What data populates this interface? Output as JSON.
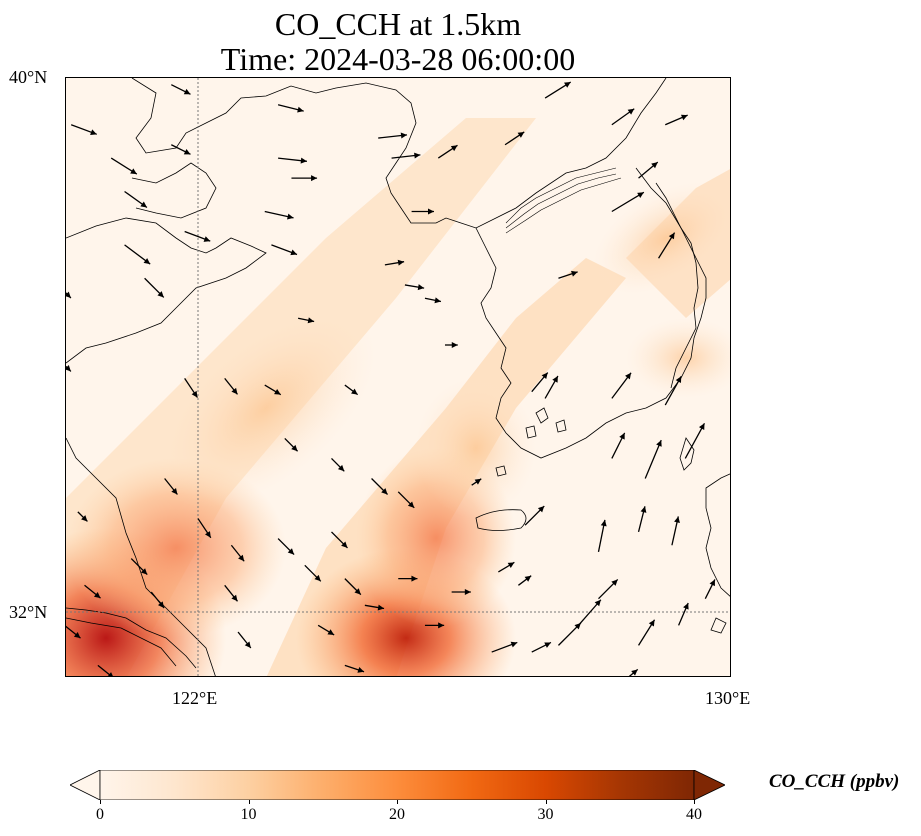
{
  "title": {
    "line1": "CO_CCH at 1.5km",
    "line2": "Time: 2024-03-28 06:00:00"
  },
  "map": {
    "lon_range": [
      120,
      130
    ],
    "lat_range": [
      31,
      40
    ],
    "gridlines": {
      "lon": [
        122
      ],
      "lat": [
        32
      ],
      "style": "dotted",
      "color": "#777777"
    },
    "lat_ticks": [
      "40°N",
      "32°N"
    ],
    "lon_ticks": [
      "122°E",
      "130°E"
    ],
    "field": {
      "variable": "CO_CCH",
      "plumes": [
        {
          "lon": 120.2,
          "lat": 31.2,
          "value": 38
        },
        {
          "lon": 121.0,
          "lat": 32.0,
          "value": 25
        },
        {
          "lon": 121.6,
          "lat": 32.9,
          "value": 18
        },
        {
          "lon": 122.6,
          "lat": 34.2,
          "value": 10
        },
        {
          "lon": 123.5,
          "lat": 35.3,
          "value": 7
        },
        {
          "lon": 125.0,
          "lat": 31.3,
          "value": 30
        },
        {
          "lon": 124.8,
          "lat": 32.2,
          "value": 22
        },
        {
          "lon": 125.2,
          "lat": 33.2,
          "value": 15
        },
        {
          "lon": 125.5,
          "lat": 34.1,
          "value": 9
        },
        {
          "lon": 129.3,
          "lat": 37.0,
          "value": 8
        },
        {
          "lon": 128.4,
          "lat": 37.8,
          "value": 6
        }
      ]
    },
    "wind_vectors": [
      {
        "lon": 120.1,
        "lat": 39.3,
        "u": 8,
        "v": -3
      },
      {
        "lon": 120.7,
        "lat": 38.8,
        "u": 8,
        "v": -5
      },
      {
        "lon": 120.9,
        "lat": 38.3,
        "u": 7,
        "v": -5
      },
      {
        "lon": 120.9,
        "lat": 37.5,
        "u": 8,
        "v": -6
      },
      {
        "lon": 121.2,
        "lat": 37.0,
        "u": 6,
        "v": -6
      },
      {
        "lon": 121.6,
        "lat": 39.9,
        "u": 6,
        "v": -3
      },
      {
        "lon": 121.6,
        "lat": 39.0,
        "u": 6,
        "v": -3
      },
      {
        "lon": 121.8,
        "lat": 37.7,
        "u": 8,
        "v": -3
      },
      {
        "lon": 123.2,
        "lat": 39.6,
        "u": 8,
        "v": -2
      },
      {
        "lon": 123.2,
        "lat": 38.8,
        "u": 9,
        "v": -1
      },
      {
        "lon": 123.4,
        "lat": 38.5,
        "u": 8,
        "v": 0
      },
      {
        "lon": 123.0,
        "lat": 38.0,
        "u": 9,
        "v": -2
      },
      {
        "lon": 123.1,
        "lat": 37.5,
        "u": 8,
        "v": -3
      },
      {
        "lon": 124.7,
        "lat": 39.1,
        "u": 9,
        "v": 1
      },
      {
        "lon": 124.9,
        "lat": 38.8,
        "u": 9,
        "v": 1
      },
      {
        "lon": 125.6,
        "lat": 38.8,
        "u": 6,
        "v": 4
      },
      {
        "lon": 124.8,
        "lat": 37.2,
        "u": 6,
        "v": 1
      },
      {
        "lon": 125.1,
        "lat": 36.9,
        "u": 6,
        "v": -1
      },
      {
        "lon": 125.4,
        "lat": 36.7,
        "u": 5,
        "v": -1
      },
      {
        "lon": 125.7,
        "lat": 36.0,
        "u": 4,
        "v": 0
      },
      {
        "lon": 126.6,
        "lat": 39.0,
        "u": 6,
        "v": 4
      },
      {
        "lon": 127.2,
        "lat": 39.7,
        "u": 8,
        "v": 5
      },
      {
        "lon": 128.2,
        "lat": 39.3,
        "u": 7,
        "v": 5
      },
      {
        "lon": 129.0,
        "lat": 39.3,
        "u": 7,
        "v": 3
      },
      {
        "lon": 128.2,
        "lat": 38.0,
        "u": 10,
        "v": 6
      },
      {
        "lon": 128.6,
        "lat": 38.5,
        "u": 6,
        "v": 5
      },
      {
        "lon": 128.9,
        "lat": 37.3,
        "u": 5,
        "v": 8
      },
      {
        "lon": 127.4,
        "lat": 37.0,
        "u": 6,
        "v": 2
      },
      {
        "lon": 127.0,
        "lat": 35.3,
        "u": 5,
        "v": 6
      },
      {
        "lon": 127.2,
        "lat": 35.2,
        "u": 4,
        "v": 7
      },
      {
        "lon": 128.2,
        "lat": 35.2,
        "u": 6,
        "v": 8
      },
      {
        "lon": 129.0,
        "lat": 35.1,
        "u": 5,
        "v": 9
      },
      {
        "lon": 129.3,
        "lat": 34.3,
        "u": 6,
        "v": 11
      },
      {
        "lon": 128.7,
        "lat": 34.0,
        "u": 5,
        "v": 12
      },
      {
        "lon": 128.2,
        "lat": 34.3,
        "u": 4,
        "v": 8
      },
      {
        "lon": 126.9,
        "lat": 33.3,
        "u": 6,
        "v": 6
      },
      {
        "lon": 126.5,
        "lat": 32.6,
        "u": 5,
        "v": 3
      },
      {
        "lon": 126.1,
        "lat": 33.9,
        "u": 3,
        "v": 2
      },
      {
        "lon": 126.8,
        "lat": 32.4,
        "u": 4,
        "v": 3
      },
      {
        "lon": 127.4,
        "lat": 31.5,
        "u": 7,
        "v": 7
      },
      {
        "lon": 127.7,
        "lat": 31.8,
        "u": 7,
        "v": 8
      },
      {
        "lon": 128.0,
        "lat": 32.2,
        "u": 6,
        "v": 6
      },
      {
        "lon": 128.6,
        "lat": 31.5,
        "u": 5,
        "v": 8
      },
      {
        "lon": 129.2,
        "lat": 31.8,
        "u": 3,
        "v": 7
      },
      {
        "lon": 129.6,
        "lat": 32.2,
        "u": 3,
        "v": 6
      },
      {
        "lon": 128.0,
        "lat": 32.9,
        "u": 2,
        "v": 10
      },
      {
        "lon": 128.6,
        "lat": 33.2,
        "u": 2,
        "v": 8
      },
      {
        "lon": 129.1,
        "lat": 33.0,
        "u": 2,
        "v": 9
      },
      {
        "lon": 126.4,
        "lat": 31.4,
        "u": 8,
        "v": 3
      },
      {
        "lon": 127.0,
        "lat": 31.4,
        "u": 6,
        "v": 3
      },
      {
        "lon": 128.3,
        "lat": 30.9,
        "u": 6,
        "v": 5
      },
      {
        "lon": 120.0,
        "lat": 31.8,
        "u": 5,
        "v": -4
      },
      {
        "lon": 120.3,
        "lat": 32.4,
        "u": 5,
        "v": -4
      },
      {
        "lon": 120.5,
        "lat": 31.2,
        "u": 5,
        "v": -4
      },
      {
        "lon": 121.0,
        "lat": 32.8,
        "u": 5,
        "v": -5
      },
      {
        "lon": 121.3,
        "lat": 32.3,
        "u": 4,
        "v": -5
      },
      {
        "lon": 122.0,
        "lat": 33.4,
        "u": 4,
        "v": -6
      },
      {
        "lon": 122.5,
        "lat": 33.0,
        "u": 4,
        "v": -5
      },
      {
        "lon": 122.4,
        "lat": 32.4,
        "u": 4,
        "v": -5
      },
      {
        "lon": 122.6,
        "lat": 31.7,
        "u": 4,
        "v": -5
      },
      {
        "lon": 123.2,
        "lat": 33.1,
        "u": 5,
        "v": -5
      },
      {
        "lon": 123.6,
        "lat": 32.7,
        "u": 5,
        "v": -5
      },
      {
        "lon": 123.8,
        "lat": 31.8,
        "u": 5,
        "v": -3
      },
      {
        "lon": 124.0,
        "lat": 33.2,
        "u": 5,
        "v": -5
      },
      {
        "lon": 124.2,
        "lat": 32.5,
        "u": 5,
        "v": -5
      },
      {
        "lon": 124.6,
        "lat": 34.0,
        "u": 5,
        "v": -5
      },
      {
        "lon": 125.0,
        "lat": 33.8,
        "u": 5,
        "v": -5
      },
      {
        "lon": 125.0,
        "lat": 32.5,
        "u": 6,
        "v": 0
      },
      {
        "lon": 125.4,
        "lat": 31.8,
        "u": 6,
        "v": 0
      },
      {
        "lon": 124.5,
        "lat": 32.1,
        "u": 6,
        "v": -1
      },
      {
        "lon": 125.8,
        "lat": 32.3,
        "u": 6,
        "v": 0
      },
      {
        "lon": 124.2,
        "lat": 31.2,
        "u": 6,
        "v": -2
      },
      {
        "lon": 120.2,
        "lat": 33.5,
        "u": 3,
        "v": -3
      },
      {
        "lon": 121.5,
        "lat": 34.0,
        "u": 4,
        "v": -5
      },
      {
        "lon": 121.8,
        "lat": 35.5,
        "u": 4,
        "v": -6
      },
      {
        "lon": 122.4,
        "lat": 35.5,
        "u": 4,
        "v": -5
      },
      {
        "lon": 123.0,
        "lat": 35.4,
        "u": 5,
        "v": -3
      },
      {
        "lon": 124.2,
        "lat": 35.4,
        "u": 4,
        "v": -3
      },
      {
        "lon": 123.3,
        "lat": 34.6,
        "u": 4,
        "v": -4
      },
      {
        "lon": 124.0,
        "lat": 34.3,
        "u": 4,
        "v": -4
      },
      {
        "lon": 123.5,
        "lat": 36.4,
        "u": 5,
        "v": -1
      },
      {
        "lon": 125.2,
        "lat": 38.0,
        "u": 7,
        "v": 0
      },
      {
        "lon": 120.0,
        "lat": 36.8,
        "u": 2,
        "v": -2
      },
      {
        "lon": 120.0,
        "lat": 35.7,
        "u": 2,
        "v": -2
      }
    ]
  },
  "colorbar": {
    "label": "CO_CCH (ppbv)",
    "min": 0,
    "max": 40,
    "ticks": [
      "0",
      "10",
      "20",
      "30",
      "40"
    ],
    "colormap": [
      "#fff5eb",
      "#fee6ce",
      "#fdd0a2",
      "#fdae6b",
      "#fd8d3c",
      "#f16913",
      "#d94801",
      "#a63603",
      "#7f2704"
    ],
    "extend": "both"
  }
}
